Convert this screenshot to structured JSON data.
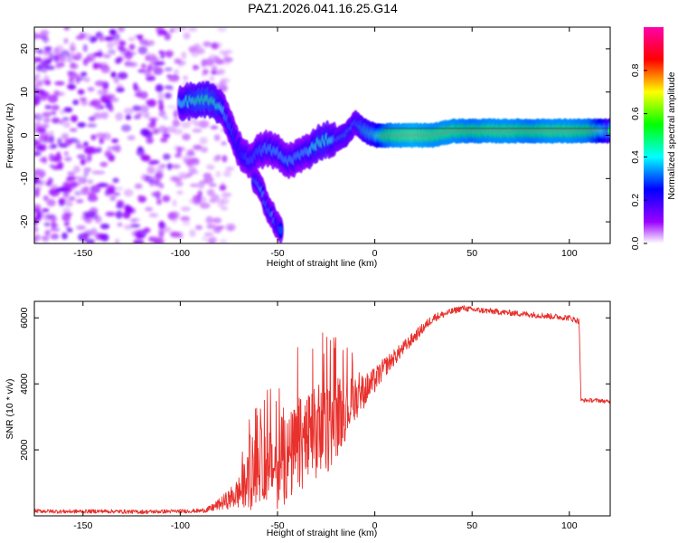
{
  "figure": {
    "title": "PAZ1.2026.041.16.25.G14"
  },
  "chart_data": [
    {
      "type": "heatmap",
      "name": "spectrogram",
      "xlabel": "Height of straight line (km)",
      "ylabel": "Frequency (Hz)",
      "xlim": [
        -175,
        121
      ],
      "ylim": [
        -25,
        25
      ],
      "xticks": [
        -150,
        -100,
        -50,
        0,
        50,
        100
      ],
      "yticks": [
        20,
        10,
        0,
        -10,
        -20
      ],
      "colorbar": {
        "label": "Normalized spectral amplitude",
        "range": [
          0,
          1
        ],
        "ticks": [
          0.0,
          0.2,
          0.4,
          0.6,
          0.8
        ]
      },
      "noise_region_x": [
        -175,
        -80
      ],
      "ridge": {
        "x": [
          -100,
          -95,
          -90,
          -85,
          -80,
          -75,
          -70,
          -65,
          -60,
          -55,
          -50,
          -45,
          -40,
          -35,
          -30,
          -25,
          -20,
          -15,
          -10,
          -5,
          0,
          5,
          10,
          20,
          30,
          40,
          50,
          60,
          70,
          80,
          90,
          100,
          110,
          121
        ],
        "freq": [
          7,
          8,
          8,
          8,
          7,
          3,
          -3,
          -6,
          -4,
          -3,
          -4,
          -6,
          -5,
          -4,
          -2,
          -1,
          -1,
          0,
          3,
          1,
          0,
          0,
          0,
          0,
          0,
          1,
          1,
          1,
          1,
          1,
          1,
          1,
          1,
          1
        ],
        "amplitude": [
          0.4,
          0.45,
          0.5,
          0.5,
          0.45,
          0.3,
          0.25,
          0.3,
          0.3,
          0.35,
          0.35,
          0.35,
          0.35,
          0.35,
          0.45,
          0.45,
          0.4,
          0.45,
          0.4,
          0.55,
          0.6,
          0.85,
          0.95,
          1.0,
          0.95,
          0.95,
          0.9,
          0.95,
          0.95,
          0.9,
          0.95,
          0.95,
          0.9,
          0.55
        ]
      },
      "branch": {
        "x": [
          -62,
          -58,
          -55,
          -52,
          -50,
          -48
        ],
        "freq": [
          -10,
          -13,
          -17,
          -19,
          -21,
          -22
        ],
        "amplitude": [
          0.3,
          0.35,
          0.3,
          0.35,
          0.25,
          0.3
        ]
      }
    },
    {
      "type": "line",
      "name": "snr",
      "xlabel": "Height of straight line (km)",
      "ylabel": "SNR (10 * v/v)",
      "xlim": [
        -175,
        121
      ],
      "ylim": [
        0,
        6500
      ],
      "xticks": [
        -150,
        -100,
        -50,
        0,
        50,
        100
      ],
      "yticks": [
        2000,
        4000,
        6000
      ],
      "color": "#e8302c",
      "series": [
        {
          "name": "SNR",
          "x": [
            -175,
            -160,
            -140,
            -120,
            -100,
            -90,
            -85,
            -80,
            -75,
            -70,
            -65,
            -60,
            -55,
            -50,
            -45,
            -40,
            -35,
            -30,
            -25,
            -20,
            -15,
            -10,
            -5,
            0,
            5,
            10,
            15,
            20,
            25,
            30,
            35,
            40,
            45,
            50,
            60,
            70,
            80,
            90,
            100,
            105,
            106,
            110,
            115,
            121
          ],
          "y": [
            150,
            130,
            140,
            120,
            140,
            150,
            200,
            350,
            500,
            700,
            1000,
            1500,
            1600,
            1400,
            1700,
            2000,
            2300,
            2400,
            2600,
            2900,
            3200,
            3600,
            3800,
            4100,
            4500,
            4800,
            5100,
            5400,
            5700,
            6000,
            6100,
            6200,
            6300,
            6250,
            6200,
            6150,
            6100,
            6050,
            6000,
            5900,
            3500,
            3500,
            3500,
            3450
          ],
          "noise": [
            60,
            60,
            60,
            60,
            60,
            60,
            100,
            180,
            300,
            500,
            900,
            1100,
            1200,
            1200,
            1300,
            1500,
            1500,
            1500,
            1400,
            1200,
            900,
            700,
            500,
            400,
            300,
            250,
            220,
            180,
            160,
            130,
            110,
            100,
            90,
            90,
            90,
            90,
            90,
            90,
            90,
            90,
            60,
            60,
            60,
            60
          ]
        }
      ]
    }
  ]
}
